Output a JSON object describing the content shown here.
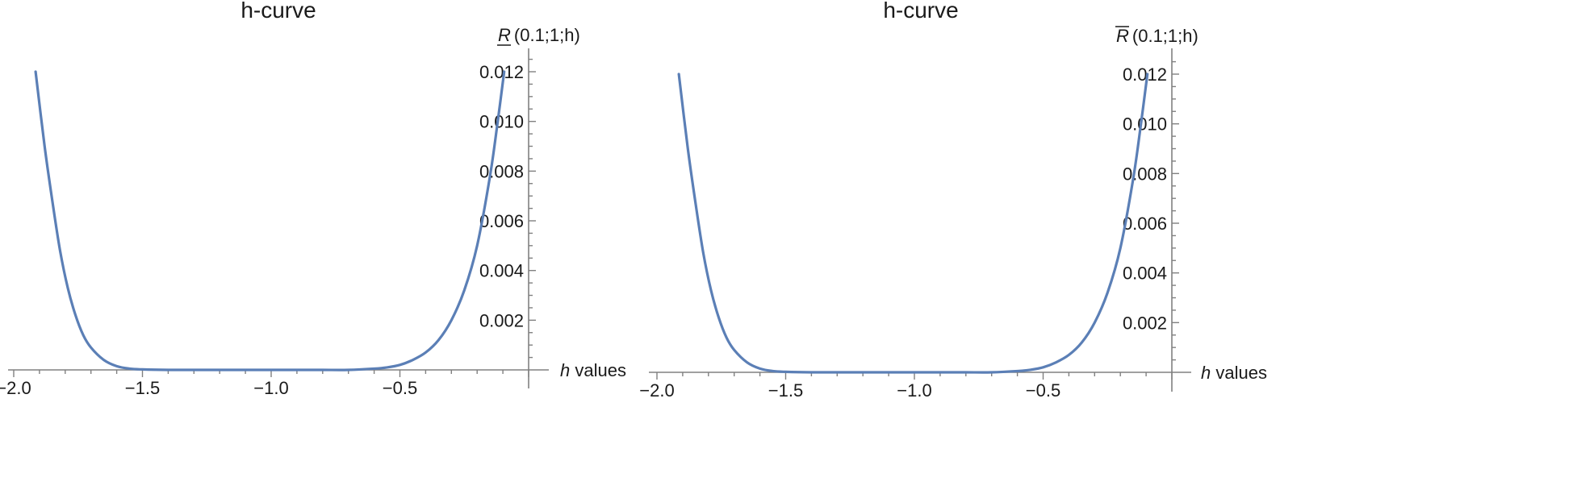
{
  "chart_data": [
    {
      "type": "line",
      "title": "h-curve",
      "ylabel": "R(0.1;1;h)",
      "ylabel_symbol": "R",
      "ylabel_args": "(0.1;1;h)",
      "ylabel_mark": "underline",
      "xlabel_italic": "h",
      "xlabel_text": " values",
      "xlim": [
        -2.1,
        0.0
      ],
      "ylim": [
        0,
        0.0125
      ],
      "x_ticks": [
        -2.0,
        -1.5,
        -1.0,
        -0.5
      ],
      "x_tick_labels": [
        "−2.0",
        "−1.5",
        "−1.0",
        "−0.5"
      ],
      "y_ticks": [
        0.002,
        0.004,
        0.006,
        0.008,
        0.01,
        0.012
      ],
      "y_tick_labels": [
        "0.002",
        "0.004",
        "0.006",
        "0.008",
        "0.010",
        "0.012"
      ],
      "grid": false,
      "series": [
        {
          "color": "#5b7fb6",
          "x": [
            -1.915,
            -1.88,
            -1.85,
            -1.82,
            -1.79,
            -1.76,
            -1.73,
            -1.7,
            -1.65,
            -1.6,
            -1.55,
            -1.5,
            -1.4,
            -1.3,
            -1.2,
            -1.1,
            -1.0,
            -0.9,
            -0.8,
            -0.7,
            -0.6,
            -0.55,
            -0.5,
            -0.45,
            -0.4,
            -0.35,
            -0.3,
            -0.25,
            -0.2,
            -0.15,
            -0.12,
            -0.095
          ],
          "y": [
            0.012,
            0.009,
            0.0068,
            0.0048,
            0.0033,
            0.0022,
            0.0014,
            0.0009,
            0.0004,
            0.00015,
            5e-05,
            2e-05,
            0.0,
            0.0,
            0.0,
            0.0,
            0.0,
            0.0,
            0.0,
            0.0,
            5e-05,
            0.0001,
            0.0002,
            0.0004,
            0.0007,
            0.0012,
            0.002,
            0.0032,
            0.005,
            0.0078,
            0.01,
            0.012
          ]
        }
      ]
    },
    {
      "type": "line",
      "title": "h-curve",
      "ylabel": "R(0.1;1;h)",
      "ylabel_symbol": "R",
      "ylabel_args": "(0.1;1;h)",
      "ylabel_mark": "overline",
      "xlabel_italic": "h",
      "xlabel_text": " values",
      "xlim": [
        -2.1,
        0.0
      ],
      "ylim": [
        0,
        0.0125
      ],
      "x_ticks": [
        -2.0,
        -1.5,
        -1.0,
        -0.5
      ],
      "x_tick_labels": [
        "−2.0",
        "−1.5",
        "−1.0",
        "−0.5"
      ],
      "y_ticks": [
        0.002,
        0.004,
        0.006,
        0.008,
        0.01,
        0.012
      ],
      "y_tick_labels": [
        "0.002",
        "0.004",
        "0.006",
        "0.008",
        "0.010",
        "0.012"
      ],
      "grid": false,
      "series": [
        {
          "color": "#5b7fb6",
          "x": [
            -1.915,
            -1.88,
            -1.85,
            -1.82,
            -1.79,
            -1.76,
            -1.73,
            -1.7,
            -1.65,
            -1.6,
            -1.55,
            -1.5,
            -1.4,
            -1.3,
            -1.2,
            -1.1,
            -1.0,
            -0.9,
            -0.8,
            -0.7,
            -0.6,
            -0.55,
            -0.5,
            -0.45,
            -0.4,
            -0.35,
            -0.3,
            -0.25,
            -0.2,
            -0.15,
            -0.12,
            -0.095
          ],
          "y": [
            0.012,
            0.009,
            0.0068,
            0.0048,
            0.0033,
            0.0022,
            0.0014,
            0.0009,
            0.0004,
            0.00015,
            5e-05,
            2e-05,
            0.0,
            0.0,
            0.0,
            0.0,
            0.0,
            0.0,
            0.0,
            0.0,
            5e-05,
            0.0001,
            0.0002,
            0.0004,
            0.0007,
            0.0012,
            0.002,
            0.0032,
            0.005,
            0.0078,
            0.01,
            0.012
          ]
        }
      ]
    }
  ]
}
